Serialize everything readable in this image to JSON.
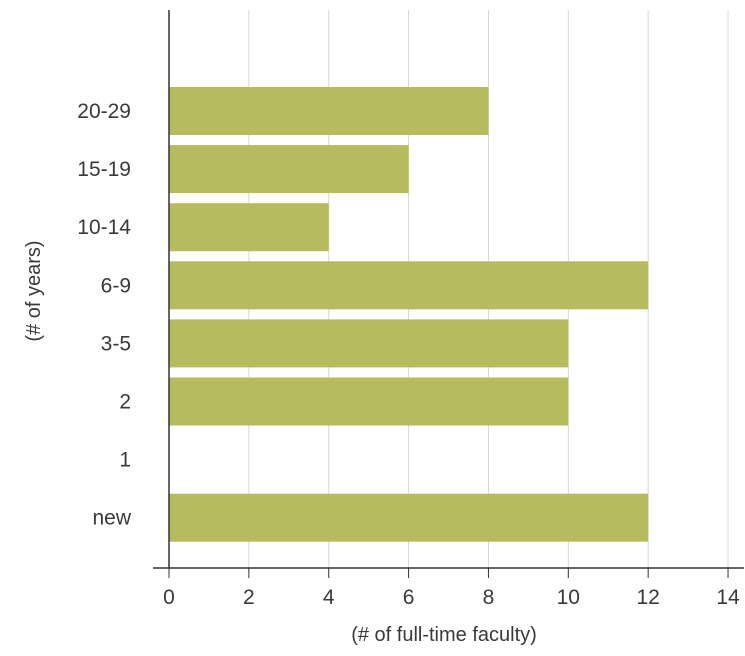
{
  "chart_data": {
    "type": "bar",
    "orientation": "horizontal",
    "categories": [
      "20-29",
      "15-19",
      "10-14",
      "6-9",
      "3-5",
      "2",
      "1",
      "new"
    ],
    "values": [
      8,
      6,
      4,
      12,
      10,
      10,
      0,
      12
    ],
    "xlabel": "(# of full-time faculty)",
    "ylabel": "(# of years)",
    "xlim": [
      0,
      14.4
    ],
    "xticks": [
      0,
      2,
      4,
      6,
      8,
      10,
      12,
      14
    ],
    "grid": true,
    "legend": "none",
    "colors": {
      "bar": "#b8ba5f",
      "grid": "#d6d6d6",
      "axis": "#333333",
      "text": "#3a3a3a"
    }
  }
}
